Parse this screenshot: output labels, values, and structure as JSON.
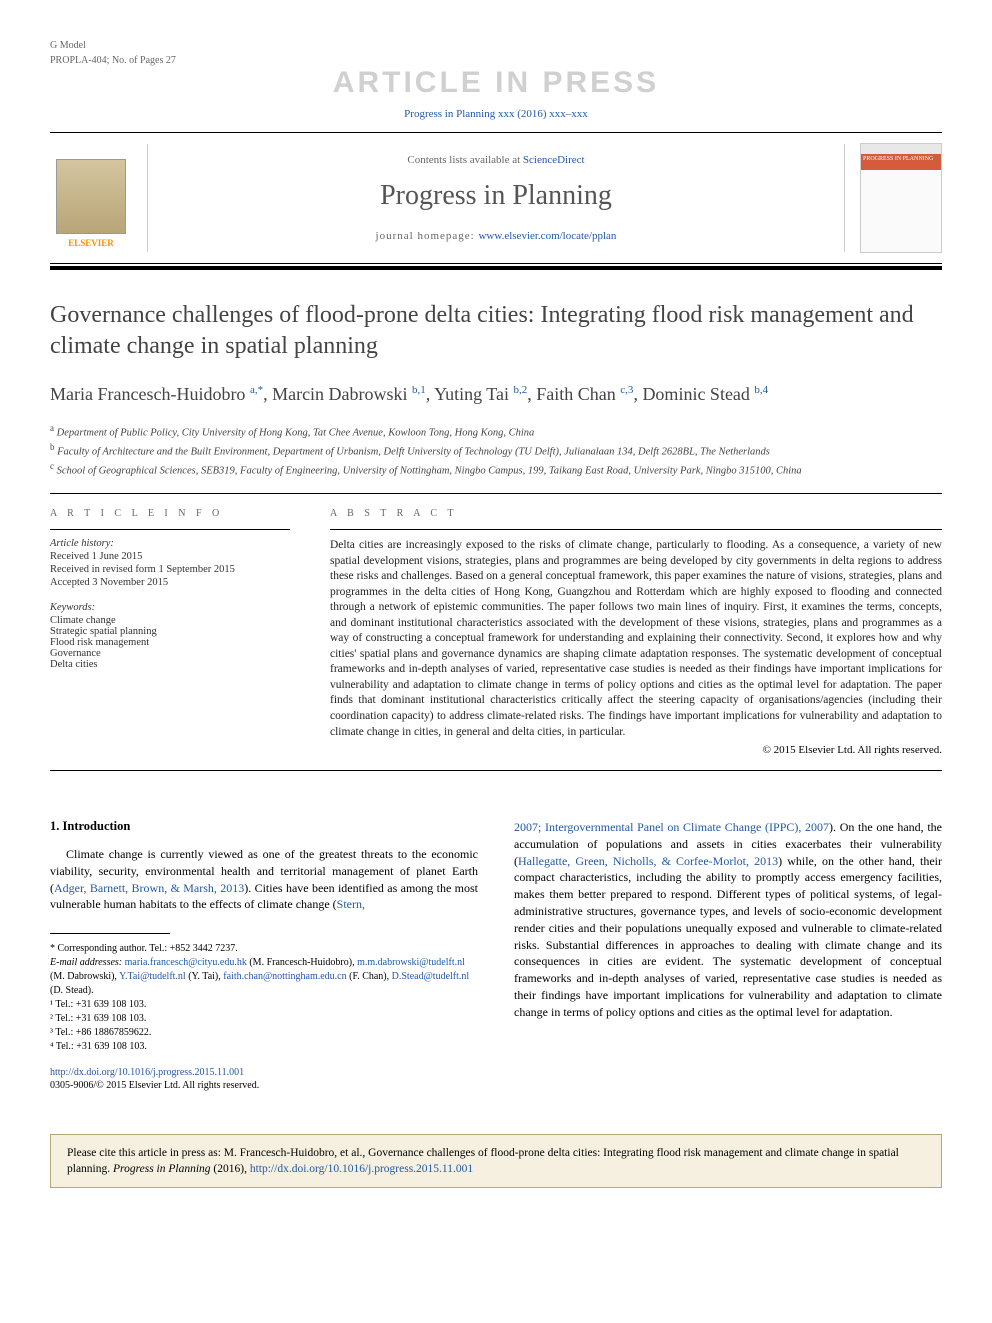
{
  "gmodel": {
    "left": "G Model",
    "right": "PROPLA-404; No. of Pages 27"
  },
  "watermark": "ARTICLE IN PRESS",
  "citation_line": "Progress in Planning xxx (2016) xxx–xxx",
  "banner": {
    "contents_prefix": "Contents lists available at ",
    "contents_link": "ScienceDirect",
    "journal_name": "Progress in Planning",
    "homepage_prefix": "journal homepage: ",
    "homepage_link": "www.elsevier.com/locate/pplan",
    "elsevier_label": "ELSEVIER",
    "cover_label": "PROGRESS IN PLANNING"
  },
  "title": "Governance challenges of flood-prone delta cities: Integrating flood risk management and climate change in spatial planning",
  "authors_html": "Maria Francesch-Huidobro <sup>a,*</sup>, Marcin Dabrowski <sup>b,1</sup>, Yuting Tai <sup>b,2</sup>, Faith Chan <sup>c,3</sup>, Dominic Stead <sup>b,4</sup>",
  "affiliations": [
    {
      "sup": "a",
      "text": "Department of Public Policy, City University of Hong Kong, Tat Chee Avenue, Kowloon Tong, Hong Kong, China"
    },
    {
      "sup": "b",
      "text": "Faculty of Architecture and the Built Environment, Department of Urbanism, Delft University of Technology (TU Delft), Julianalaan 134, Delft 2628BL, The Netherlands"
    },
    {
      "sup": "c",
      "text": "School of Geographical Sciences, SEB319, Faculty of Engineering, University of Nottingham, Ningbo Campus, 199, Taikang East Road, University Park, Ningbo 315100, China"
    }
  ],
  "info": {
    "heading": "A R T I C L E   I N F O",
    "history_label": "Article history:",
    "history": [
      "Received 1 June 2015",
      "Received in revised form 1 September 2015",
      "Accepted 3 November 2015"
    ],
    "keywords_label": "Keywords:",
    "keywords": [
      "Climate change",
      "Strategic spatial planning",
      "Flood risk management",
      "Governance",
      "Delta cities"
    ]
  },
  "abstract": {
    "heading": "A B S T R A C T",
    "text": "Delta cities are increasingly exposed to the risks of climate change, particularly to flooding. As a consequence, a variety of new spatial development visions, strategies, plans and programmes are being developed by city governments in delta regions to address these risks and challenges. Based on a general conceptual framework, this paper examines the nature of visions, strategies, plans and programmes in the delta cities of Hong Kong, Guangzhou and Rotterdam which are highly exposed to flooding and connected through a network of epistemic communities. The paper follows two main lines of inquiry. First, it examines the terms, concepts, and dominant institutional characteristics associated with the development of these visions, strategies, plans and programmes as a way of constructing a conceptual framework for understanding and explaining their connectivity. Second, it explores how and why cities' spatial plans and governance dynamics are shaping climate adaptation responses. The systematic development of conceptual frameworks and in-depth analyses of varied, representative case studies is needed as their findings have important implications for vulnerability and adaptation to climate change in terms of policy options and cities as the optimal level for adaptation. The paper finds that dominant institutional characteristics critically affect the steering capacity of organisations/agencies (including their coordination capacity) to address climate-related risks. The findings have important implications for vulnerability and adaptation to climate change in cities, in general and delta cities, in particular.",
    "copyright": "© 2015 Elsevier Ltd. All rights reserved."
  },
  "intro": {
    "heading": "1. Introduction",
    "col1_pre": "Climate change is currently viewed as one of the greatest threats to the economic viability, security, environmental health and territorial management of planet Earth (",
    "col1_ref1": "Adger, Barnett, Brown, & Marsh, 2013",
    "col1_mid": "). Cities have been identified as among the most vulnerable human habitats to the effects of climate change (",
    "col1_ref2": "Stern,",
    "col2_ref1": "2007; Intergovernmental Panel on Climate Change (IPPC), 2007",
    "col2_mid1": "). On the one hand, the accumulation of populations and assets in cities exacerbates their vulnerability (",
    "col2_ref2": "Hallegatte, Green, Nicholls, & Corfee-Morlot, 2013",
    "col2_mid2": ") while, on the other hand, their compact characteristics, including the ability to promptly access emergency facilities, makes them better prepared to respond. Different types of political systems, of legal-administrative structures, governance types, and levels of socio-economic development render cities and their populations unequally exposed and vulnerable to climate-related risks. Substantial differences in approaches to dealing with climate change and its consequences in cities are evident. The systematic development of conceptual frameworks and in-depth analyses of varied, representative case studies is needed as their findings have important implications for vulnerability and adaptation to climate change in terms of policy options and cities as the optimal level for adaptation."
  },
  "footnotes": {
    "corr": "* Corresponding author. Tel.: +852 3442 7237.",
    "email_label": "E-mail addresses: ",
    "emails": [
      {
        "addr": "maria.francesch@cityu.edu.hk",
        "name": " (M. Francesch-Huidobro), "
      },
      {
        "addr": "m.m.dabrowski@tudelft.nl",
        "name": " (M. Dabrowski), "
      },
      {
        "addr": "Y.Tai@tudelft.nl",
        "name": " (Y. Tai), "
      },
      {
        "addr": "faith.chan@nottingham.edu.cn",
        "name": " (F. Chan), "
      },
      {
        "addr": "D.Stead@tudelft.nl",
        "name": " (D. Stead)."
      }
    ],
    "tels": [
      "¹ Tel.: +31 639 108 103.",
      "² Tel.: +31 639 108 103.",
      "³ Tel.: +86 18867859622.",
      "⁴ Tel.: +31 639 108 103."
    ]
  },
  "doi": {
    "link": "http://dx.doi.org/10.1016/j.progress.2015.11.001",
    "issn": "0305-9006/© 2015 Elsevier Ltd. All rights reserved."
  },
  "citebox": {
    "prefix": "Please cite this article in press as: M. Francesch-Huidobro, et al., Governance challenges of flood-prone delta cities: Integrating flood risk management and climate change in spatial planning. ",
    "journal": "Progress in Planning",
    "year": " (2016), ",
    "link": "http://dx.doi.org/10.1016/j.progress.2015.11.001"
  },
  "colors": {
    "link": "#2159a6",
    "watermark": "#d0d0d0",
    "elsevier_orange": "#ff8c00",
    "citebox_bg": "#f5f0e0",
    "citebox_border": "#b8a678"
  }
}
